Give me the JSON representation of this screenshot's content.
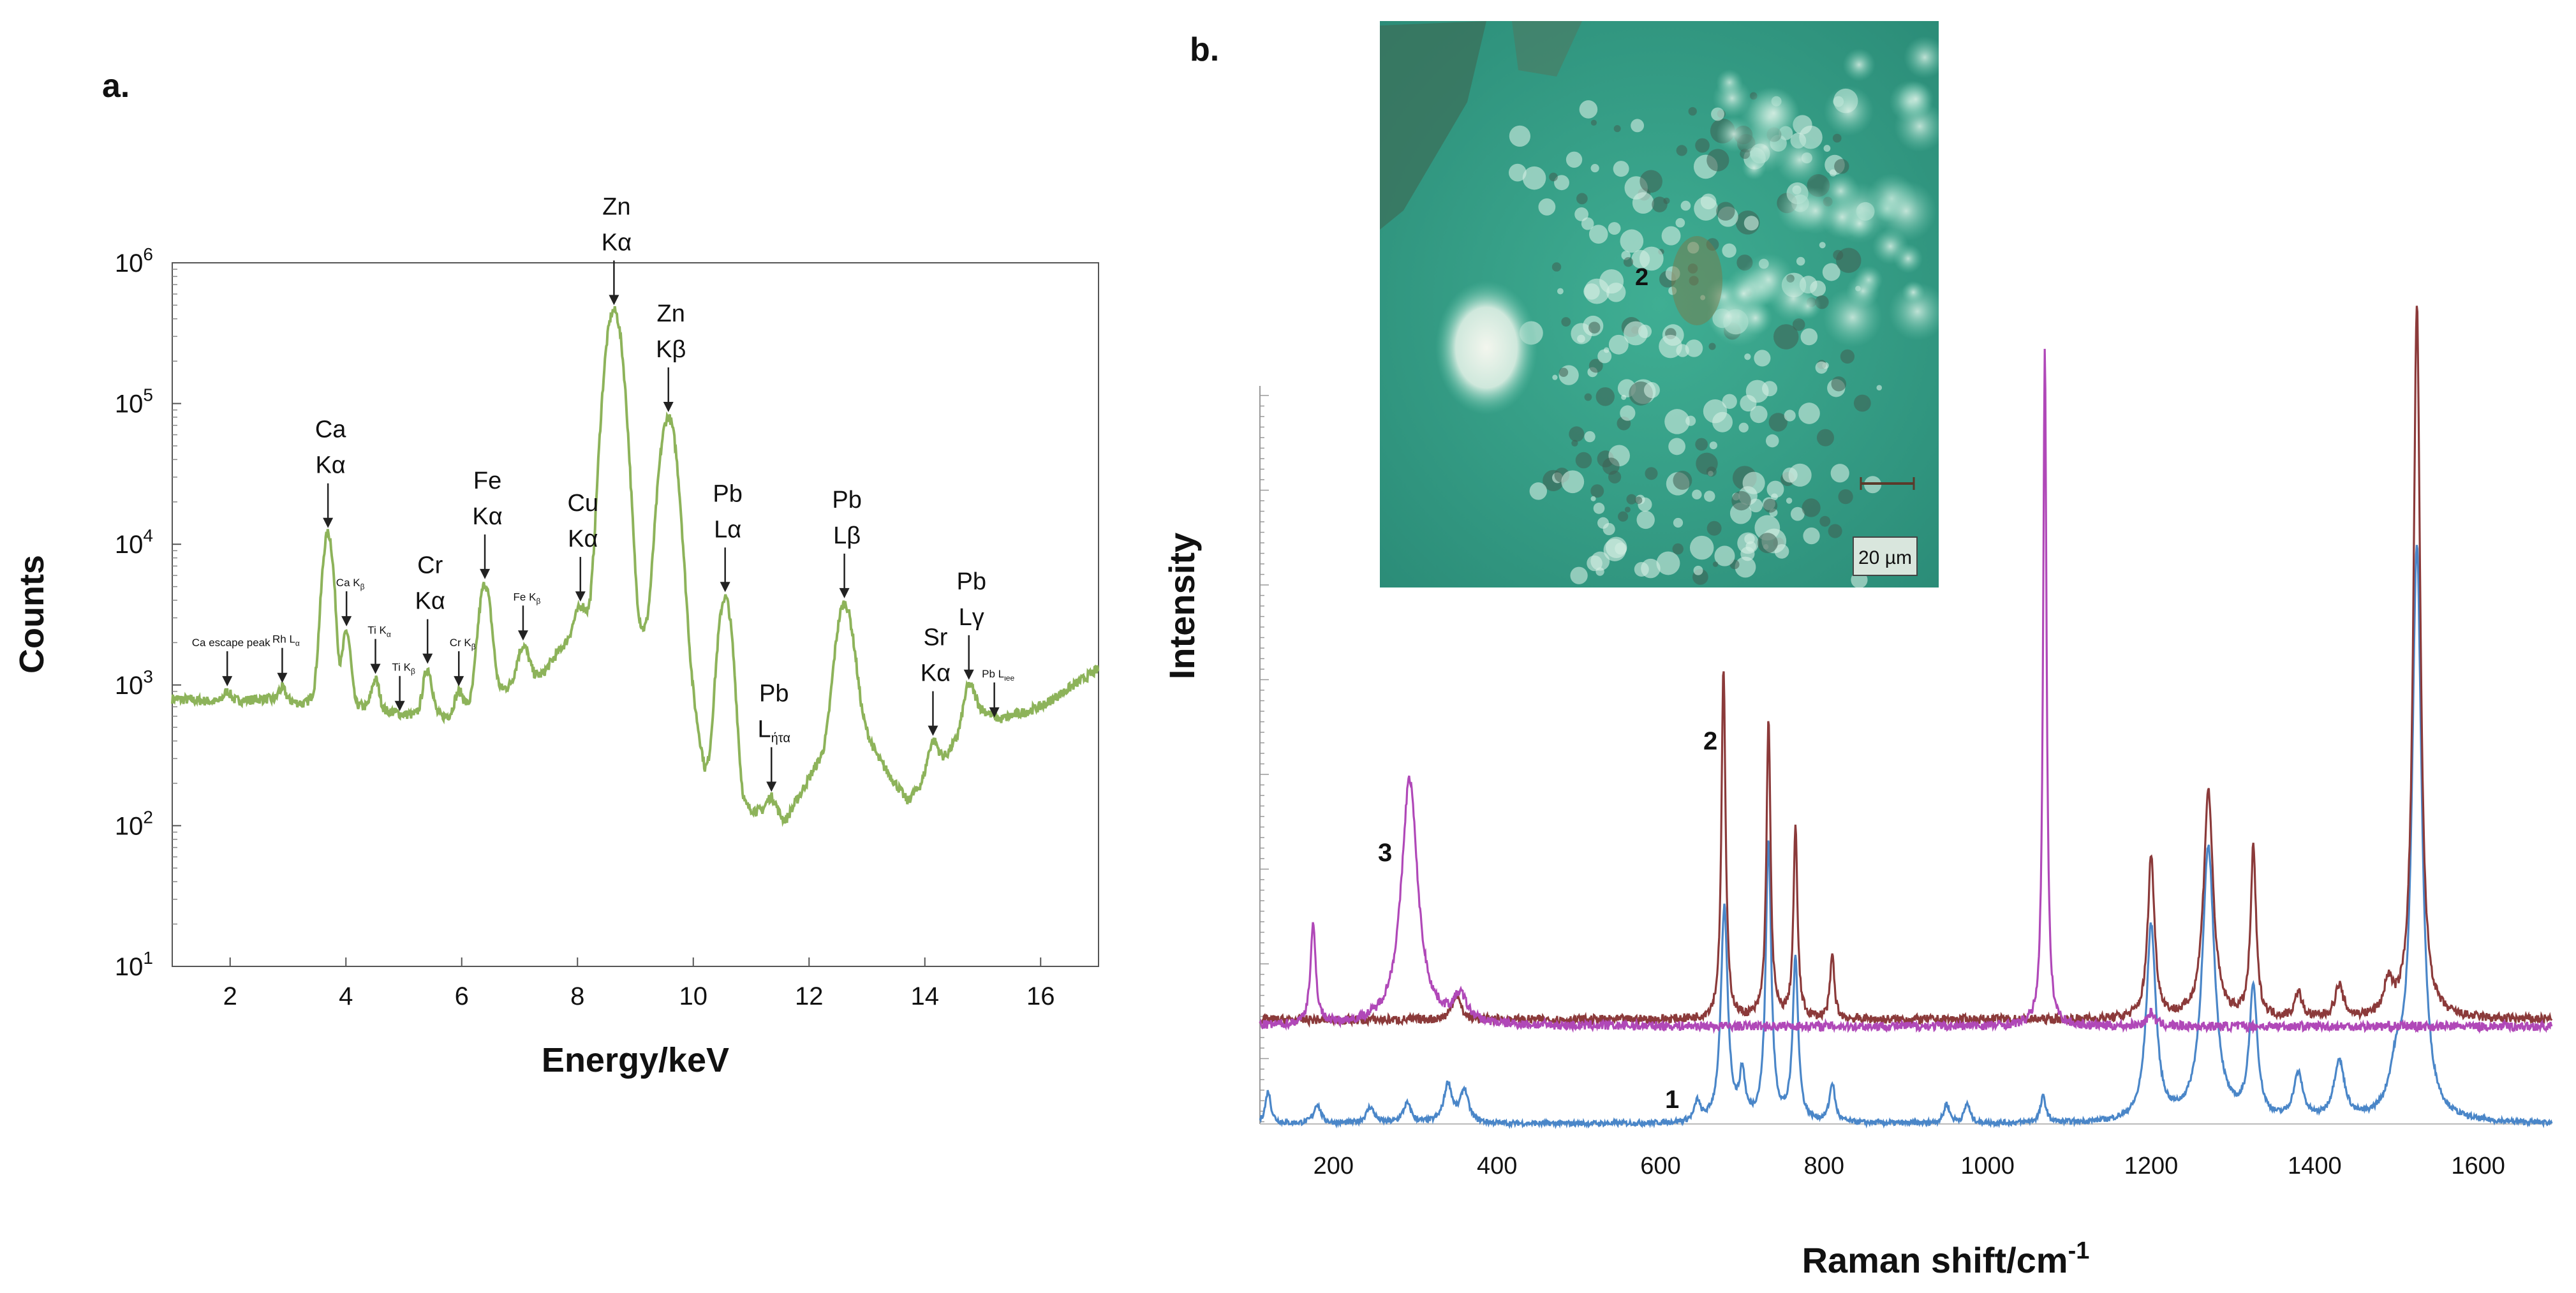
{
  "panels": {
    "a": "a.",
    "b": "b."
  },
  "chart_data": [
    {
      "panel": "a",
      "type": "line",
      "xlabel": "Energy/keV",
      "ylabel": "Counts",
      "yscale": "log",
      "xlim": [
        1,
        17
      ],
      "ylim": [
        10,
        1000000
      ],
      "xticks": [
        "2",
        "4",
        "6",
        "8",
        "10",
        "12",
        "14",
        "16"
      ],
      "yticks": [
        "10^1",
        "10^2",
        "10^3",
        "10^4",
        "10^5",
        "10^6"
      ],
      "line_color": "#8db35a",
      "baseline": [
        [
          1.0,
          800
        ],
        [
          1.8,
          760
        ],
        [
          2.6,
          800
        ],
        [
          3.3,
          740
        ],
        [
          3.5,
          900
        ],
        [
          4.2,
          720
        ],
        [
          5.0,
          620
        ],
        [
          5.8,
          600
        ],
        [
          6.6,
          900
        ],
        [
          7.4,
          1200
        ],
        [
          7.7,
          1800
        ],
        [
          8.1,
          2600
        ],
        [
          9.0,
          2600
        ],
        [
          9.9,
          1400
        ],
        [
          10.2,
          250
        ],
        [
          10.8,
          140
        ],
        [
          11.6,
          110
        ],
        [
          12.1,
          260
        ],
        [
          12.8,
          700
        ],
        [
          13.2,
          300
        ],
        [
          13.7,
          150
        ],
        [
          14.4,
          330
        ],
        [
          14.9,
          700
        ],
        [
          15.3,
          570
        ],
        [
          16.0,
          700
        ],
        [
          17.0,
          1300
        ]
      ],
      "peaks": [
        {
          "x": 1.95,
          "y": 900,
          "w": 0.06
        },
        {
          "x": 2.9,
          "y": 950,
          "w": 0.06
        },
        {
          "x": 3.69,
          "y": 12000,
          "w": 0.08
        },
        {
          "x": 4.01,
          "y": 2400,
          "w": 0.06
        },
        {
          "x": 4.51,
          "y": 1100,
          "w": 0.06
        },
        {
          "x": 4.93,
          "y": 600,
          "w": 0.06
        },
        {
          "x": 5.41,
          "y": 1300,
          "w": 0.07
        },
        {
          "x": 5.95,
          "y": 900,
          "w": 0.07
        },
        {
          "x": 6.4,
          "y": 5200,
          "w": 0.09
        },
        {
          "x": 7.06,
          "y": 1900,
          "w": 0.09
        },
        {
          "x": 8.05,
          "y": 3600,
          "w": 0.1
        },
        {
          "x": 8.63,
          "y": 460000,
          "w": 0.12
        },
        {
          "x": 9.57,
          "y": 80000,
          "w": 0.12
        },
        {
          "x": 10.55,
          "y": 4200,
          "w": 0.1
        },
        {
          "x": 11.35,
          "y": 160,
          "w": 0.08
        },
        {
          "x": 12.61,
          "y": 3800,
          "w": 0.12
        },
        {
          "x": 14.14,
          "y": 400,
          "w": 0.08
        },
        {
          "x": 14.76,
          "y": 1000,
          "w": 0.08
        },
        {
          "x": 15.2,
          "y": 540,
          "w": 0.06
        }
      ],
      "annotations": [
        {
          "text": "Ca escape peak",
          "x": 1.95,
          "y": 900,
          "size": "small"
        },
        {
          "text": "Rh L",
          "sub": "α",
          "x": 2.9,
          "y": 950,
          "size": "small"
        },
        {
          "text": "Ca",
          "line2": "Kα",
          "x": 3.69,
          "y": 12000,
          "size": "big"
        },
        {
          "text": "Ca K",
          "sub": "β",
          "x": 4.01,
          "y": 2400,
          "size": "small"
        },
        {
          "text": "Ti K",
          "sub": "α",
          "x": 4.51,
          "y": 1100,
          "size": "small"
        },
        {
          "text": "Ti K",
          "sub": "β",
          "x": 4.93,
          "y": 600,
          "size": "small"
        },
        {
          "text": "Cr",
          "line2": "Kα",
          "x": 5.41,
          "y": 1300,
          "size": "big"
        },
        {
          "text": "Cr K",
          "sub": "β",
          "x": 5.95,
          "y": 900,
          "size": "small"
        },
        {
          "text": "Fe",
          "line2": "Kα",
          "x": 6.4,
          "y": 5200,
          "size": "big"
        },
        {
          "text": "Fe K",
          "sub": "β",
          "x": 7.06,
          "y": 1900,
          "size": "small"
        },
        {
          "text": "Cu",
          "line2": "Kα",
          "x": 8.05,
          "y": 3600,
          "size": "big"
        },
        {
          "text": "Zn",
          "line2": "Kα",
          "x": 8.63,
          "y": 460000,
          "size": "big"
        },
        {
          "text": "Zn",
          "line2": "Kβ",
          "x": 9.57,
          "y": 80000,
          "size": "big"
        },
        {
          "text": "Pb",
          "line2": "Lα",
          "x": 10.55,
          "y": 4200,
          "size": "big"
        },
        {
          "text": "Pb",
          "line2": "L",
          "sub": "ήτα",
          "x": 11.35,
          "y": 160,
          "size": "big"
        },
        {
          "text": "Pb",
          "line2": "Lβ",
          "x": 12.61,
          "y": 3800,
          "size": "big"
        },
        {
          "text": "Sr",
          "line2": "Kα",
          "x": 14.14,
          "y": 400,
          "size": "big"
        },
        {
          "text": "Pb",
          "line2": "Lγ",
          "x": 14.76,
          "y": 1000,
          "size": "big"
        },
        {
          "text": "Pb L",
          "sub": "ιee",
          "x": 15.2,
          "y": 540,
          "size": "small"
        }
      ]
    },
    {
      "panel": "b",
      "type": "line",
      "xlabel": "Raman shift/cm-1",
      "xlabel_main": "Raman shift/cm",
      "xlabel_sup": "-1",
      "ylabel": "Intensity",
      "xlim": [
        110,
        1690
      ],
      "xticks": [
        "200",
        "400",
        "600",
        "800",
        "1000",
        "1200",
        "1400",
        "1600"
      ],
      "grid": false,
      "series": [
        {
          "name": "1",
          "color": "#4a86c8",
          "baseline": 0.0,
          "peaks": [
            {
              "x": 120,
              "h": 0.05,
              "w": 4
            },
            {
              "x": 180,
              "h": 0.03,
              "w": 5
            },
            {
              "x": 245,
              "h": 0.025,
              "w": 6
            },
            {
              "x": 290,
              "h": 0.03,
              "w": 6
            },
            {
              "x": 340,
              "h": 0.06,
              "w": 6
            },
            {
              "x": 360,
              "h": 0.05,
              "w": 6
            },
            {
              "x": 645,
              "h": 0.03,
              "w": 4
            },
            {
              "x": 678,
              "h": 0.33,
              "w": 5
            },
            {
              "x": 700,
              "h": 0.07,
              "w": 4
            },
            {
              "x": 732,
              "h": 0.43,
              "w": 4
            },
            {
              "x": 765,
              "h": 0.25,
              "w": 4
            },
            {
              "x": 810,
              "h": 0.06,
              "w": 4
            },
            {
              "x": 950,
              "h": 0.03,
              "w": 4
            },
            {
              "x": 975,
              "h": 0.03,
              "w": 4
            },
            {
              "x": 1068,
              "h": 0.04,
              "w": 4
            },
            {
              "x": 1200,
              "h": 0.3,
              "w": 7
            },
            {
              "x": 1270,
              "h": 0.42,
              "w": 9
            },
            {
              "x": 1325,
              "h": 0.2,
              "w": 6
            },
            {
              "x": 1380,
              "h": 0.07,
              "w": 7
            },
            {
              "x": 1430,
              "h": 0.09,
              "w": 8
            },
            {
              "x": 1500,
              "h": 0.07,
              "w": 10
            },
            {
              "x": 1525,
              "h": 0.88,
              "w": 7
            }
          ],
          "noise": 0.004
        },
        {
          "name": "2",
          "color": "#8b3a3a",
          "baseline": 0.16,
          "peaks": [
            {
              "x": 350,
              "h": 0.04,
              "w": 6
            },
            {
              "x": 677,
              "h": 0.54,
              "w": 3
            },
            {
              "x": 732,
              "h": 0.46,
              "w": 3
            },
            {
              "x": 765,
              "h": 0.29,
              "w": 3
            },
            {
              "x": 810,
              "h": 0.1,
              "w": 3
            },
            {
              "x": 1200,
              "h": 0.25,
              "w": 5
            },
            {
              "x": 1270,
              "h": 0.35,
              "w": 7
            },
            {
              "x": 1325,
              "h": 0.26,
              "w": 4
            },
            {
              "x": 1380,
              "h": 0.04,
              "w": 5
            },
            {
              "x": 1430,
              "h": 0.05,
              "w": 6
            },
            {
              "x": 1490,
              "h": 0.05,
              "w": 6
            },
            {
              "x": 1525,
              "h": 1.1,
              "w": 5
            }
          ],
          "noise": 0.007
        },
        {
          "name": "3",
          "color": "#b048b8",
          "baseline": 0.15,
          "peaks": [
            {
              "x": 175,
              "h": 0.15,
              "w": 4
            },
            {
              "x": 293,
              "h": 0.38,
              "w": 12
            },
            {
              "x": 355,
              "h": 0.04,
              "w": 10
            },
            {
              "x": 1070,
              "h": 1.05,
              "w": 2.5
            },
            {
              "x": 1200,
              "h": 0.02,
              "w": 6
            }
          ],
          "noise": 0.007
        }
      ],
      "curve_labels": [
        "1",
        "2",
        "3"
      ],
      "inset": {
        "marker": "2",
        "scale_bar": "20 µm"
      }
    }
  ]
}
